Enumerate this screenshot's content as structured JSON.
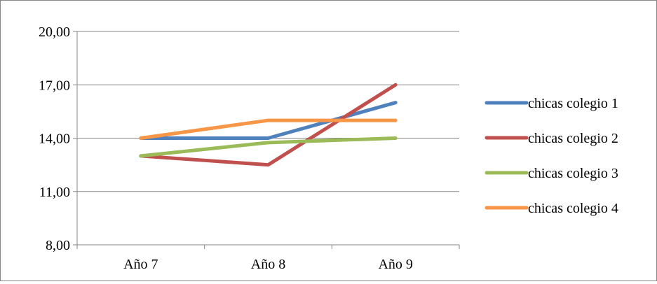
{
  "chart_data": {
    "type": "line",
    "categories": [
      "Año 7",
      "Año 8",
      "Año 9"
    ],
    "series": [
      {
        "name": "chicas colegio 1",
        "color": "#4F81BD",
        "values": [
          14.0,
          14.0,
          16.0
        ]
      },
      {
        "name": "chicas colegio 2",
        "color": "#C0504D",
        "values": [
          13.0,
          12.5,
          17.0
        ]
      },
      {
        "name": "chicas colegio 3",
        "color": "#9BBB59",
        "values": [
          13.0,
          13.75,
          14.0
        ]
      },
      {
        "name": "chicas colegio 4",
        "color": "#F79646",
        "values": [
          14.0,
          15.0,
          15.0
        ]
      }
    ],
    "ylim": [
      8,
      20
    ],
    "yticks": [
      8,
      11,
      14,
      17,
      20
    ],
    "ytick_labels": [
      "8,00",
      "11,00",
      "14,00",
      "17,00",
      "20,00"
    ],
    "grid": true,
    "legend_position": "right",
    "title": "",
    "xlabel": "",
    "ylabel": ""
  }
}
